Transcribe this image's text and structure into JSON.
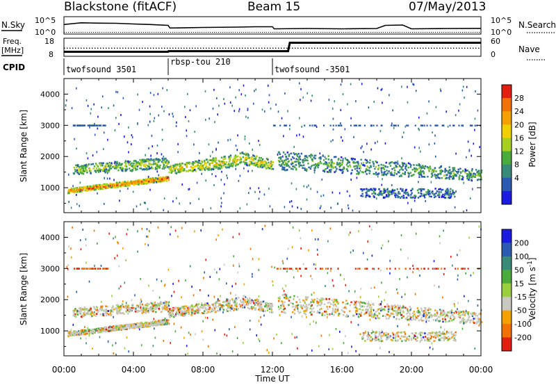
{
  "header": {
    "station": "Blackstone (fitACF)",
    "beam": "Beam 15",
    "date": "07/May/2013"
  },
  "chart_data": {
    "type": "heatmap",
    "time_ticks": [
      "00:00",
      "04:00",
      "08:00",
      "12:00",
      "16:00",
      "20:00",
      "00:00"
    ],
    "xlabel": "Time UT",
    "x_range_hours": [
      0,
      24
    ],
    "nsky": {
      "left_label": "N.Sky",
      "right_label": "N.Search",
      "left_ticks": [
        "10^5",
        "10^0"
      ],
      "right_ticks": [
        "10^5",
        "10^0"
      ],
      "solid_series": [
        [
          0,
          0.55
        ],
        [
          0.5,
          0.6
        ],
        [
          1,
          0.65
        ],
        [
          2,
          0.63
        ],
        [
          3,
          0.62
        ],
        [
          4,
          0.58
        ],
        [
          5,
          0.55
        ],
        [
          6,
          0.5
        ],
        [
          6.1,
          0.35
        ],
        [
          8,
          0.38
        ],
        [
          10,
          0.4
        ],
        [
          11,
          0.42
        ],
        [
          12,
          0.42
        ],
        [
          12.1,
          0.3
        ],
        [
          14,
          0.32
        ],
        [
          16,
          0.3
        ],
        [
          18,
          0.32
        ],
        [
          18.5,
          0.5
        ],
        [
          19.5,
          0.52
        ],
        [
          20,
          0.3
        ],
        [
          22,
          0.32
        ],
        [
          24,
          0.33
        ]
      ],
      "dotted_level": 0.1
    },
    "freq": {
      "left_label": "Freq.",
      "left_units": "[MHz]",
      "left_ticks": [
        "18",
        "8"
      ],
      "right_label": "Nave",
      "right_ticks": [
        "60",
        "0"
      ],
      "freq_series": [
        [
          0,
          9.5
        ],
        [
          6,
          9.5
        ],
        [
          6.02,
          10
        ],
        [
          12.9,
          10
        ],
        [
          13,
          16.5
        ],
        [
          24,
          16.5
        ]
      ],
      "nave_dotted_level_frac": 0.55
    },
    "cpid": {
      "label": "CPID",
      "segments": [
        {
          "name": "twofsound 3501",
          "start": 0,
          "end": 6
        },
        {
          "name": "rbsp-tou 210",
          "start": 6,
          "end": 12
        },
        {
          "name": "twofsound -3501",
          "start": 12,
          "end": 24
        }
      ]
    },
    "power": {
      "ylabel": "Slant Range [km]",
      "yticks": [
        1000,
        2000,
        3000,
        4000
      ],
      "ylim": [
        200,
        4500
      ],
      "colorbar_label": "Power [dB]",
      "colorbar_ticks": [
        4,
        8,
        12,
        16,
        20,
        24,
        28
      ],
      "colorbar_range": [
        0,
        32
      ],
      "colors": [
        "#1b1be0",
        "#2b5bb0",
        "#3a8a7a",
        "#4aaa3a",
        "#a8d020",
        "#f0d000",
        "#f4a000",
        "#f47000",
        "#e02010"
      ],
      "echo_bands": [
        {
          "t0": 0.2,
          "t1": 6,
          "r0": 850,
          "r1": 1000,
          "r0b": 1250,
          "r1b": 1400,
          "strength": 0.9
        },
        {
          "t0": 0.5,
          "t1": 6,
          "r0": 1450,
          "r1": 1750,
          "r0b": 1650,
          "r1b": 2000,
          "strength": 0.5
        },
        {
          "t0": 6,
          "t1": 10,
          "r0": 1450,
          "r1": 1750,
          "r0b": 1700,
          "r1b": 2100,
          "strength": 0.6
        },
        {
          "t0": 10,
          "t1": 12,
          "r0": 1800,
          "r1": 2200,
          "r0b": 1600,
          "r1b": 1900,
          "strength": 0.6
        },
        {
          "t0": 12.3,
          "t1": 24,
          "r0": 1600,
          "r1": 2200,
          "r0b": 1250,
          "r1b": 1600,
          "strength": 0.35
        },
        {
          "t0": 17,
          "t1": 22.5,
          "r0": 700,
          "r1": 1000,
          "r0b": 700,
          "r1b": 1000,
          "strength": 0.2
        }
      ]
    },
    "velocity": {
      "ylabel": "Slant Range [km]",
      "yticks": [
        1000,
        2000,
        3000,
        4000
      ],
      "ylim": [
        200,
        4500
      ],
      "colorbar_label": "Velocity [m s^-1]",
      "colorbar_ticks": [
        200,
        100,
        50,
        15,
        -15,
        -50,
        -100,
        -200
      ],
      "colors": [
        "#1b1be0",
        "#2b5bb0",
        "#3a8a7a",
        "#4aaa3a",
        "#9ad040",
        "#c8c8c0",
        "#f4a000",
        "#f47000",
        "#e02010"
      ]
    }
  }
}
